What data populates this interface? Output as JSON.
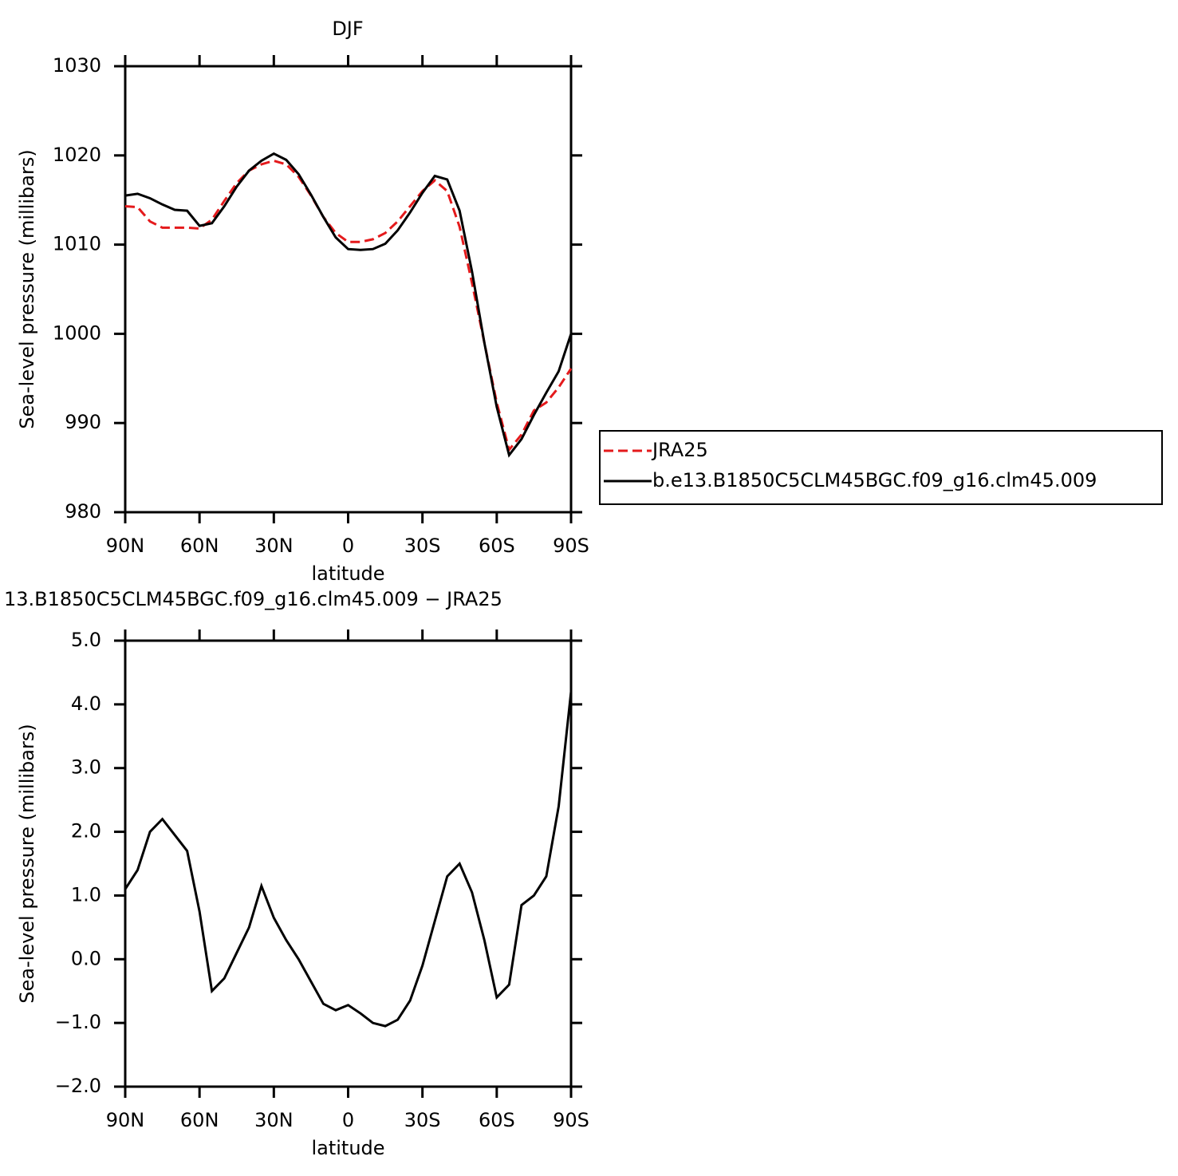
{
  "chart_data": [
    {
      "type": "line",
      "title": "DJF",
      "xlabel": "latitude",
      "ylabel": "Sea-level pressure (millibars)",
      "x": [
        90,
        85,
        80,
        75,
        70,
        65,
        60,
        55,
        50,
        45,
        40,
        35,
        30,
        25,
        20,
        15,
        10,
        5,
        0,
        -5,
        -10,
        -15,
        -20,
        -25,
        -30,
        -35,
        -40,
        -45,
        -50,
        -55,
        -60,
        -65,
        -70,
        -75,
        -80,
        -85,
        -90
      ],
      "xlim": [
        90,
        -90
      ],
      "xticks": [
        {
          "value": 90,
          "label": "90N"
        },
        {
          "value": 60,
          "label": "60N"
        },
        {
          "value": 30,
          "label": "30N"
        },
        0,
        {
          "value": -30,
          "label": "30S"
        },
        {
          "value": -60,
          "label": "60S"
        },
        {
          "value": -90,
          "label": "90S"
        }
      ],
      "ylim": [
        980,
        1030
      ],
      "yticks": [
        980,
        990,
        1000,
        1010,
        1020,
        1030
      ],
      "legend": "right",
      "series": [
        {
          "name": "JRA25",
          "color": "#e41a1c",
          "linestyle": "dashed",
          "values": [
            1014.3,
            1014.2,
            1012.6,
            1011.9,
            1011.9,
            1011.9,
            1011.8,
            1012.8,
            1014.9,
            1016.9,
            1018.3,
            1019.0,
            1019.4,
            1019.0,
            1017.6,
            1015.5,
            1013.1,
            1011.3,
            1010.3,
            1010.3,
            1010.6,
            1011.3,
            1012.6,
            1014.3,
            1016.0,
            1017.2,
            1016.0,
            1012.0,
            1005.7,
            999.0,
            992.3,
            987.0,
            988.7,
            991.4,
            992.3,
            994.0,
            996.1
          ]
        },
        {
          "name": "b.e13.B1850C5CLM45BGC.f09_g16.clm45.009",
          "color": "#000000",
          "linestyle": "solid",
          "values": [
            1015.5,
            1015.7,
            1015.2,
            1014.5,
            1013.9,
            1013.8,
            1012.1,
            1012.4,
            1014.3,
            1016.5,
            1018.3,
            1019.4,
            1020.2,
            1019.5,
            1017.9,
            1015.6,
            1013.1,
            1010.8,
            1009.5,
            1009.4,
            1009.5,
            1010.1,
            1011.6,
            1013.6,
            1015.8,
            1017.7,
            1017.3,
            1013.8,
            1007.0,
            999.0,
            991.8,
            986.4,
            988.2,
            990.9,
            993.4,
            995.8,
            1000.0
          ]
        }
      ]
    },
    {
      "type": "line",
      "title": "13.B1850C5CLM45BGC.f09_g16.clm45.009 − JRA25",
      "xlabel": "latitude",
      "ylabel": "Sea-level pressure (millibars)",
      "x": [
        90,
        85,
        80,
        75,
        70,
        65,
        60,
        55,
        50,
        45,
        40,
        35,
        30,
        25,
        20,
        15,
        10,
        5,
        0,
        -5,
        -10,
        -15,
        -20,
        -25,
        -30,
        -35,
        -40,
        -45,
        -50,
        -55,
        -60,
        -65,
        -70,
        -75,
        -80,
        -85,
        -90
      ],
      "xlim": [
        90,
        -90
      ],
      "xticks": [
        {
          "value": 90,
          "label": "90N"
        },
        {
          "value": 60,
          "label": "60N"
        },
        {
          "value": 30,
          "label": "30N"
        },
        0,
        {
          "value": -30,
          "label": "30S"
        },
        {
          "value": -60,
          "label": "60S"
        },
        {
          "value": -90,
          "label": "90S"
        }
      ],
      "ylim": [
        -2,
        5
      ],
      "yticks": [
        {
          "value": -2,
          "label": "−2.0"
        },
        {
          "value": -1,
          "label": "−1.0"
        },
        {
          "value": 0,
          "label": "0.0"
        },
        {
          "value": 1,
          "label": "1.0"
        },
        {
          "value": 2,
          "label": "2.0"
        },
        {
          "value": 3,
          "label": "3.0"
        },
        {
          "value": 4,
          "label": "4.0"
        },
        {
          "value": 5,
          "label": "5.0"
        }
      ],
      "color": "#000000",
      "values": [
        1.1,
        1.4,
        2.0,
        2.2,
        1.95,
        1.7,
        0.75,
        -0.5,
        -0.3,
        0.1,
        0.5,
        1.15,
        0.65,
        0.3,
        0.0,
        -0.35,
        -0.7,
        -0.8,
        -0.72,
        -0.85,
        -1.0,
        -1.05,
        -0.95,
        -0.65,
        -0.1,
        0.6,
        1.3,
        1.5,
        1.05,
        0.3,
        -0.6,
        -0.4,
        0.85,
        1.0,
        1.3,
        2.4,
        4.2
      ]
    }
  ]
}
